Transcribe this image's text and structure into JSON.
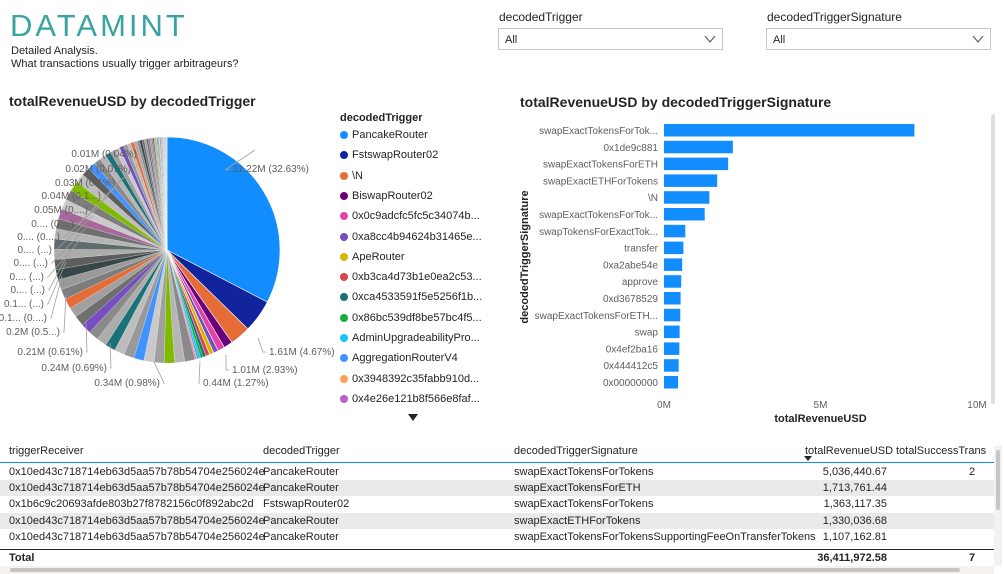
{
  "header": {
    "logo_text": "DATAMINT",
    "subtitle_line1": "Detailed Analysis.",
    "subtitle_line2": "What transactions usually trigger arbitrageurs?"
  },
  "slicers": [
    {
      "label": "decodedTrigger",
      "value": "All"
    },
    {
      "label": "decodedTriggerSignature",
      "value": "All"
    }
  ],
  "pie": {
    "title": "totalRevenueUSD by decodedTrigger",
    "labels_right": [
      "11.22M (32.63%)",
      "1.61M (4.67%)",
      "1.01M (2.93%)",
      "0.44M (1.27%)"
    ],
    "labels_left": [
      "0.01M (0.04%)",
      "0.02M (0.07%)",
      "0.03M (0.1%)",
      "0.04M (0.1...)",
      "0.05M (0....)",
      "0.... (0....)",
      "0.... (0....)",
      "0.... (...)",
      "0.... (...)",
      "0.... (...)",
      "0.... (...)",
      "0.1... (...)",
      "0.1... (0....)",
      "0.2M (0.5...)",
      "0.21M (0.61%)",
      "0.24M (0.69%)",
      "0.34M (0.98%)"
    ]
  },
  "chart_data": [
    {
      "type": "pie",
      "title": "totalRevenueUSD by decodedTrigger",
      "legend_title": "decodedTrigger",
      "slices": [
        {
          "label": "PancakeRouter",
          "value": 11.22,
          "percent": 32.63,
          "color": "#118DFF"
        },
        {
          "label": "FstswapRouter02",
          "value": 1.61,
          "percent": 4.67,
          "color": "#12239E"
        },
        {
          "label": "\\N",
          "value": 1.01,
          "percent": 2.93,
          "color": "#E66C37"
        },
        {
          "label": "BiswapRouter02",
          "value": 0.44,
          "percent": 1.27,
          "color": "#6B007B"
        },
        {
          "label": "0x0c9adcfc5fc5c34074b...",
          "value": 0.34,
          "percent": 0.98,
          "color": "#E044A7"
        },
        {
          "label": "0xa8cc4b94624b31465e...",
          "value": 0.24,
          "percent": 0.69,
          "color": "#744EC2"
        },
        {
          "label": "ApeRouter",
          "value": 0.21,
          "percent": 0.61,
          "color": "#D9B300"
        },
        {
          "label": "0xb3ca4d73b1e0ea2c53...",
          "value": 0.2,
          "color": "#D64550"
        },
        {
          "label": "0xca4533591f5e5256f1b...",
          "value": 0.15,
          "color": "#197278"
        },
        {
          "label": "0x86bc539df8be57bc4f5...",
          "value": 0.12,
          "color": "#1AAB40"
        },
        {
          "label": "AdminUpgradeabilityPro...",
          "value": 0.1,
          "color": "#15C6F4"
        },
        {
          "label": "AggregationRouterV4",
          "value": 0.08,
          "color": "#4092FF"
        },
        {
          "label": "0x3948392c35fabb910d...",
          "value": 0.06,
          "color": "#FFA058"
        },
        {
          "label": "0x4e26e121b8f566e8faf...",
          "value": 0.05,
          "color": "#BE5DC9"
        }
      ]
    },
    {
      "type": "bar",
      "orientation": "horizontal",
      "title": "totalRevenueUSD by decodedTriggerSignature",
      "xlabel": "totalRevenueUSD",
      "ylabel": "decodedTriggerSignature",
      "xlim": [
        0,
        10
      ],
      "x_ticks": [
        "0M",
        "5M",
        "10M"
      ],
      "color": "#118DFF",
      "categories": [
        "swapExactTokensForTok...",
        "0x1de9c881",
        "swapExactTokensForETH",
        "swapExactETHForTokens",
        "\\N",
        "swapExactTokensForTok...",
        "swapTokensForExactTok...",
        "transfer",
        "0xa2abe54e",
        "approve",
        "0xd3678529",
        "swapExactTokensForETH...",
        "swap",
        "0x4ef2ba16",
        "0x444412c5",
        "0x00000000"
      ],
      "values": [
        8.0,
        2.2,
        2.05,
        1.7,
        1.45,
        1.3,
        0.68,
        0.62,
        0.58,
        0.55,
        0.53,
        0.52,
        0.5,
        0.49,
        0.47,
        0.45
      ]
    }
  ],
  "table": {
    "columns": [
      "triggerReceiver",
      "decodedTrigger",
      "decodedTriggerSignature",
      "totalRevenueUSD",
      "totalSuccessTrans"
    ],
    "rows": [
      [
        "0x10ed43c718714eb63d5aa57b78b54704e256024e",
        "PancakeRouter",
        "swapExactTokensForTokens",
        "5,036,440.67",
        "2"
      ],
      [
        "0x10ed43c718714eb63d5aa57b78b54704e256024e",
        "PancakeRouter",
        "swapExactTokensForETH",
        "1,713,761.44",
        ""
      ],
      [
        "0x1b6c9c20693afde803b27f8782156c0f892abc2d",
        "FstswapRouter02",
        "swapExactTokensForTokens",
        "1,363,117.35",
        ""
      ],
      [
        "0x10ed43c718714eb63d5aa57b78b54704e256024e",
        "PancakeRouter",
        "swapExactETHForTokens",
        "1,330,036.68",
        ""
      ],
      [
        "0x10ed43c718714eb63d5aa57b78b54704e256024e",
        "PancakeRouter",
        "swapExactTokensForTokensSupportingFeeOnTransferTokens",
        "1,107,162.81",
        ""
      ]
    ],
    "total_label": "Total",
    "total_value": "36,411,972.58",
    "total_trans": "7"
  }
}
